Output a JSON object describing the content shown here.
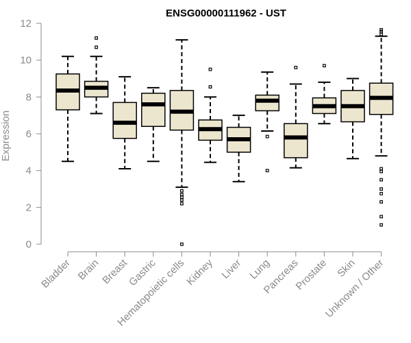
{
  "chart_data": {
    "type": "boxplot",
    "title": "ENSG00000111962 - UST",
    "xlabel": "",
    "ylabel": "Expression",
    "ylim": [
      0,
      12
    ],
    "yticks": [
      0,
      2,
      4,
      6,
      8,
      10,
      12
    ],
    "categories": [
      "Bladder",
      "Brain",
      "Breast",
      "Gastric",
      "Hematopoietic cells",
      "Kidney",
      "Liver",
      "Lung",
      "Pancreas",
      "Prostate",
      "Skin",
      "Unknown / Other"
    ],
    "boxes": [
      {
        "name": "Bladder",
        "whisker_low": 4.5,
        "q1": 7.3,
        "median": 8.35,
        "q3": 9.25,
        "whisker_high": 10.2,
        "outliers": []
      },
      {
        "name": "Brain",
        "whisker_low": 7.1,
        "q1": 8.0,
        "median": 8.5,
        "q3": 8.85,
        "whisker_high": 10.2,
        "outliers": [
          10.7,
          11.2
        ]
      },
      {
        "name": "Breast",
        "whisker_low": 4.1,
        "q1": 5.75,
        "median": 6.6,
        "q3": 7.7,
        "whisker_high": 9.1,
        "outliers": []
      },
      {
        "name": "Gastric",
        "whisker_low": 4.5,
        "q1": 6.4,
        "median": 7.6,
        "q3": 8.2,
        "whisker_high": 8.5,
        "outliers": []
      },
      {
        "name": "Hematopoietic cells",
        "whisker_low": 3.1,
        "q1": 6.2,
        "median": 7.2,
        "q3": 8.35,
        "whisker_high": 11.1,
        "outliers": [
          2.9,
          2.7,
          2.55,
          2.4,
          2.2,
          0.0
        ]
      },
      {
        "name": "Kidney",
        "whisker_low": 4.45,
        "q1": 5.65,
        "median": 6.25,
        "q3": 6.75,
        "whisker_high": 8.0,
        "outliers": [
          8.55,
          9.5
        ]
      },
      {
        "name": "Liver",
        "whisker_low": 3.4,
        "q1": 5.0,
        "median": 5.7,
        "q3": 6.35,
        "whisker_high": 7.0,
        "outliers": []
      },
      {
        "name": "Lung",
        "whisker_low": 6.15,
        "q1": 7.25,
        "median": 7.8,
        "q3": 8.1,
        "whisker_high": 9.35,
        "outliers": [
          5.85,
          4.0
        ]
      },
      {
        "name": "Pancreas",
        "whisker_low": 4.15,
        "q1": 4.7,
        "median": 5.8,
        "q3": 6.55,
        "whisker_high": 8.7,
        "outliers": [
          9.6
        ]
      },
      {
        "name": "Prostate",
        "whisker_low": 6.55,
        "q1": 7.1,
        "median": 7.5,
        "q3": 7.95,
        "whisker_high": 8.8,
        "outliers": [
          9.7
        ]
      },
      {
        "name": "Skin",
        "whisker_low": 4.65,
        "q1": 6.65,
        "median": 7.5,
        "q3": 8.35,
        "whisker_high": 9.0,
        "outliers": []
      },
      {
        "name": "Unknown / Other",
        "whisker_low": 4.8,
        "q1": 7.05,
        "median": 7.95,
        "q3": 8.75,
        "whisker_high": 11.3,
        "outliers": [
          11.4,
          11.55,
          11.65,
          4.1,
          3.95,
          3.5,
          3.0,
          2.75,
          2.3,
          1.5,
          1.05
        ]
      }
    ],
    "box_fill": "#ede6cf",
    "grid": false,
    "legend": "none"
  }
}
